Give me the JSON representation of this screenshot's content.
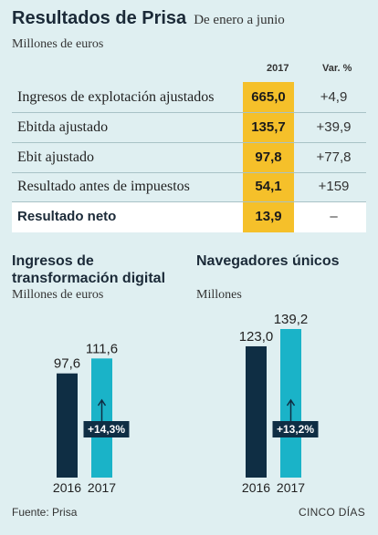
{
  "header": {
    "title": "Resultados de Prisa",
    "subtitle": "De enero a junio",
    "units": "Millones de euros"
  },
  "table": {
    "col_year": "2017",
    "col_var": "Var. %",
    "rows": [
      {
        "label": "Ingresos de explotación ajustados",
        "value": "665,0",
        "var": "+4,9"
      },
      {
        "label": "Ebitda ajustado",
        "value": "135,7",
        "var": "+39,9"
      },
      {
        "label": "Ebit ajustado",
        "value": "97,8",
        "var": "+77,8"
      },
      {
        "label": "Resultado antes de impuestos",
        "value": "54,1",
        "var": "+159"
      },
      {
        "label": "Resultado neto",
        "value": "13,9",
        "var": "–"
      }
    ]
  },
  "colors": {
    "background": "#dfeff1",
    "highlight": "#f5c02a",
    "bar_2016": "#0f2e44",
    "bar_2017": "#1ab3c8"
  },
  "chart_data": [
    {
      "type": "bar",
      "title": "Ingresos de transformación digital",
      "units": "Millones de euros",
      "categories": [
        "2016",
        "2017"
      ],
      "values": [
        97.6,
        111.6
      ],
      "value_labels": [
        "97,6",
        "111,6"
      ],
      "change_label": "+14,3%"
    },
    {
      "type": "bar",
      "title": "Navegadores únicos",
      "units": "Millones",
      "categories": [
        "2016",
        "2017"
      ],
      "values": [
        123.0,
        139.2
      ],
      "value_labels": [
        "123,0",
        "139,2"
      ],
      "change_label": "+13,2%"
    }
  ],
  "footer": {
    "source": "Fuente: Prisa",
    "brand": "CINCO DÍAS"
  }
}
